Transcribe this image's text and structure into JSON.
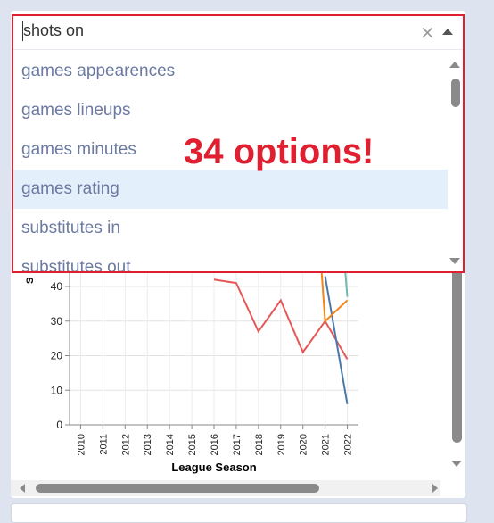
{
  "select": {
    "value": "shots on",
    "clear_icon": "close-icon",
    "toggle_icon": "chevron-up-icon"
  },
  "options": [
    {
      "label": "games appearences",
      "highlighted": false
    },
    {
      "label": "games lineups",
      "highlighted": false
    },
    {
      "label": "games minutes",
      "highlighted": false
    },
    {
      "label": "games rating",
      "highlighted": true
    },
    {
      "label": "substitutes in",
      "highlighted": false
    },
    {
      "label": "substitutes out",
      "highlighted": false
    }
  ],
  "annotation": {
    "text": "34 options!",
    "color": "#e02030"
  },
  "chart_data": {
    "type": "line",
    "xlabel": "League Season",
    "ylabel": "S",
    "x": [
      "2010",
      "2011",
      "2012",
      "2013",
      "2014",
      "2015",
      "2016",
      "2017",
      "2018",
      "2019",
      "2020",
      "2021",
      "2022"
    ],
    "yticks": [
      0,
      10,
      20,
      30,
      40
    ],
    "ylim": [
      0,
      48
    ],
    "grid": true,
    "series": [
      {
        "color": "#e45756",
        "points": [
          [
            2016,
            42
          ],
          [
            2017,
            41
          ],
          [
            2018,
            27
          ],
          [
            2019,
            36
          ],
          [
            2020,
            21
          ],
          [
            2021,
            30
          ],
          [
            2022,
            19
          ]
        ]
      },
      {
        "color": "#4c78a8",
        "points": [
          [
            2021,
            43
          ],
          [
            2022,
            6
          ]
        ]
      },
      {
        "color": "#f58518",
        "points": [
          [
            2020.8,
            48
          ],
          [
            2021,
            30
          ],
          [
            2022,
            36
          ]
        ]
      },
      {
        "color": "#72b7b2",
        "points": [
          [
            2021.9,
            45
          ],
          [
            2022,
            37
          ]
        ]
      }
    ]
  }
}
